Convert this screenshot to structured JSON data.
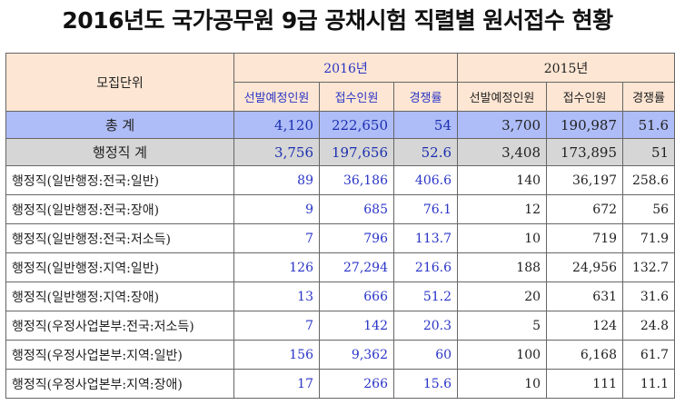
{
  "title": "2016년도 국가공무원 9급 공채시험 직렬별 원서접수 현황",
  "header": {
    "unit": "모집단위",
    "year2016": "2016년",
    "year2015": "2015년",
    "cols2016": [
      "선발예정인원",
      "접수인원",
      "경쟁률"
    ],
    "cols2015": [
      "선발예정인원",
      "접수인원",
      "경쟁률"
    ]
  },
  "total": {
    "label": "총  계",
    "v16": [
      "4,120",
      "222,650",
      "54"
    ],
    "v15": [
      "3,700",
      "190,987",
      "51.6"
    ]
  },
  "admin": {
    "label": "행정직 계",
    "v16": [
      "3,756",
      "197,656",
      "52.6"
    ],
    "v15": [
      "3,408",
      "173,895",
      "51"
    ]
  },
  "rows": [
    {
      "label": "행정직(일반행정:전국:일반)",
      "v16": [
        "89",
        "36,186",
        "406.6"
      ],
      "v15": [
        "140",
        "36,197",
        "258.6"
      ]
    },
    {
      "label": "행정직(일반행정:전국:장애)",
      "v16": [
        "9",
        "685",
        "76.1"
      ],
      "v15": [
        "12",
        "672",
        "56"
      ]
    },
    {
      "label": "행정직(일반행정:전국:저소득)",
      "v16": [
        "7",
        "796",
        "113.7"
      ],
      "v15": [
        "10",
        "719",
        "71.9"
      ]
    },
    {
      "label": "행정직(일반행정:지역:일반)",
      "v16": [
        "126",
        "27,294",
        "216.6"
      ],
      "v15": [
        "188",
        "24,956",
        "132.7"
      ]
    },
    {
      "label": "행정직(일반행정:지역:장애)",
      "v16": [
        "13",
        "666",
        "51.2"
      ],
      "v15": [
        "20",
        "631",
        "31.6"
      ]
    },
    {
      "label": "행정직(우정사업본부:전국:저소득)",
      "v16": [
        "7",
        "142",
        "20.3"
      ],
      "v15": [
        "5",
        "124",
        "24.8"
      ]
    },
    {
      "label": "행정직(우정사업본부:지역:일반)",
      "v16": [
        "156",
        "9,362",
        "60"
      ],
      "v15": [
        "100",
        "6,168",
        "61.7"
      ]
    },
    {
      "label": "행정직(우정사업본부:지역:장애)",
      "v16": [
        "17",
        "266",
        "15.6"
      ],
      "v15": [
        "10",
        "111",
        "11.1"
      ]
    }
  ]
}
